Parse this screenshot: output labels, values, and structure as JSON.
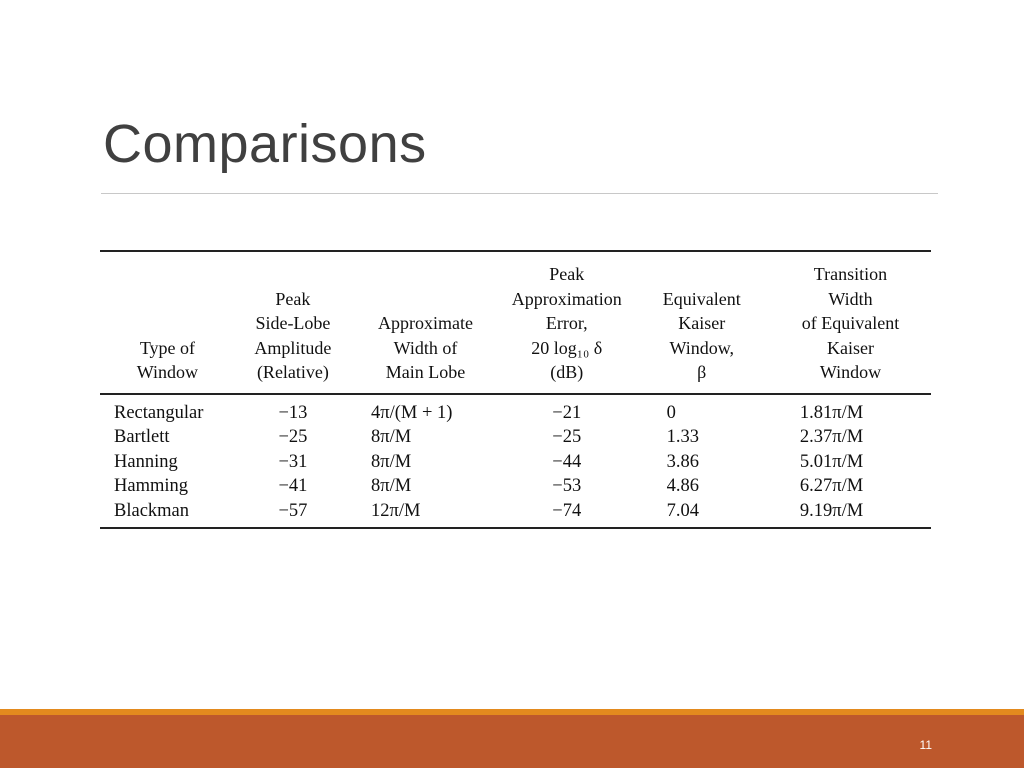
{
  "slide": {
    "title": "Comparisons",
    "page_number": "11"
  },
  "table": {
    "headers": [
      "Type of\nWindow",
      "Peak\nSide-Lobe\nAmplitude\n(Relative)",
      "Approximate\nWidth of\nMain Lobe",
      "Peak\nApproximation\nError,\n20 log₁₀ δ\n(dB)",
      "Equivalent\nKaiser\nWindow,\nβ",
      "Transition\nWidth\nof Equivalent\nKaiser\nWindow"
    ],
    "rows": [
      [
        "Rectangular",
        "−13",
        "4π/(M + 1)",
        "−21",
        "0",
        "1.81π/M"
      ],
      [
        "Bartlett",
        "−25",
        "8π/M",
        "−25",
        "1.33",
        "2.37π/M"
      ],
      [
        "Hanning",
        "−31",
        "8π/M",
        "−44",
        "3.86",
        "5.01π/M"
      ],
      [
        "Hamming",
        "−41",
        "8π/M",
        "−53",
        "4.86",
        "6.27π/M"
      ],
      [
        "Blackman",
        "−57",
        "12π/M",
        "−74",
        "7.04",
        "9.19π/M"
      ]
    ]
  },
  "colors": {
    "accent_orange": "#e38a1e",
    "footer_rust": "#bd582c",
    "title_gray": "#404040"
  }
}
